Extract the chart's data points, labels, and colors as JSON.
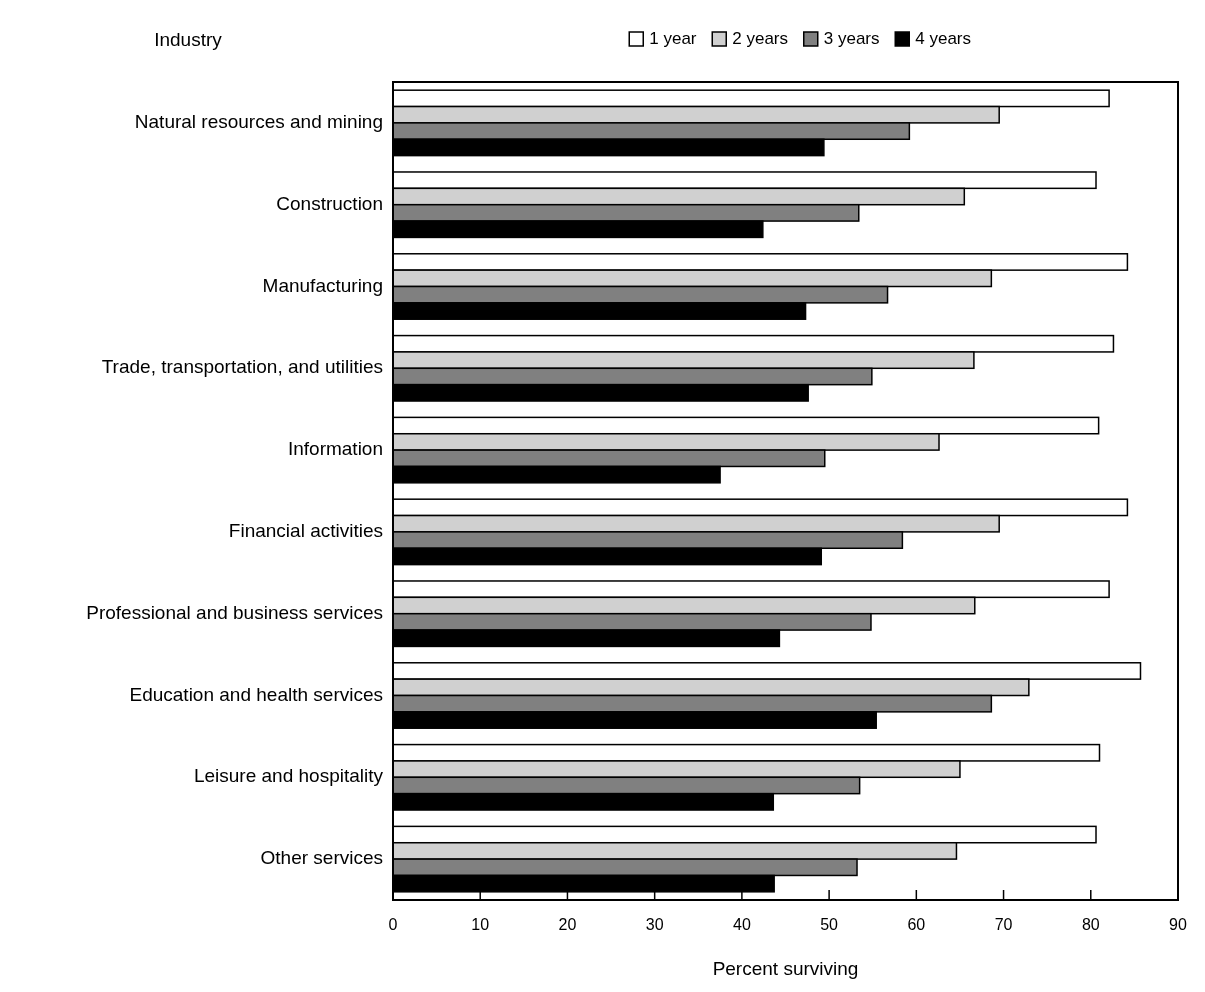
{
  "chart_data": {
    "type": "bar",
    "orientation": "horizontal",
    "ylabel": "Industry",
    "xlabel": "Percent surviving",
    "categories": [
      "Natural resources and mining",
      "Construction",
      "Manufacturing",
      "Trade, transportation, and utilities",
      "Information",
      "Financial activities",
      "Professional and business services",
      "Education and health services",
      "Leisure and hospitality",
      "Other services"
    ],
    "series": [
      {
        "name": "1 year",
        "color": "#ffffff",
        "values": [
          82.1,
          80.6,
          84.2,
          82.6,
          80.9,
          84.2,
          82.1,
          85.7,
          81.0,
          80.6
        ]
      },
      {
        "name": "2 years",
        "color": "#d0d0d0",
        "values": [
          69.5,
          65.5,
          68.6,
          66.6,
          62.6,
          69.5,
          66.7,
          72.9,
          65.0,
          64.6
        ]
      },
      {
        "name": "3 years",
        "color": "#808080",
        "values": [
          59.2,
          53.4,
          56.7,
          54.9,
          49.5,
          58.4,
          54.8,
          68.6,
          53.5,
          53.2
        ]
      },
      {
        "name": "4 years",
        "color": "#000000",
        "values": [
          49.4,
          42.4,
          47.3,
          47.6,
          37.5,
          49.1,
          44.3,
          55.4,
          43.6,
          43.7
        ]
      }
    ],
    "xlim": [
      0,
      90
    ],
    "xticks": [
      0,
      10,
      20,
      30,
      40,
      50,
      60,
      70,
      80,
      90
    ],
    "legend": "top",
    "grid": false
  }
}
